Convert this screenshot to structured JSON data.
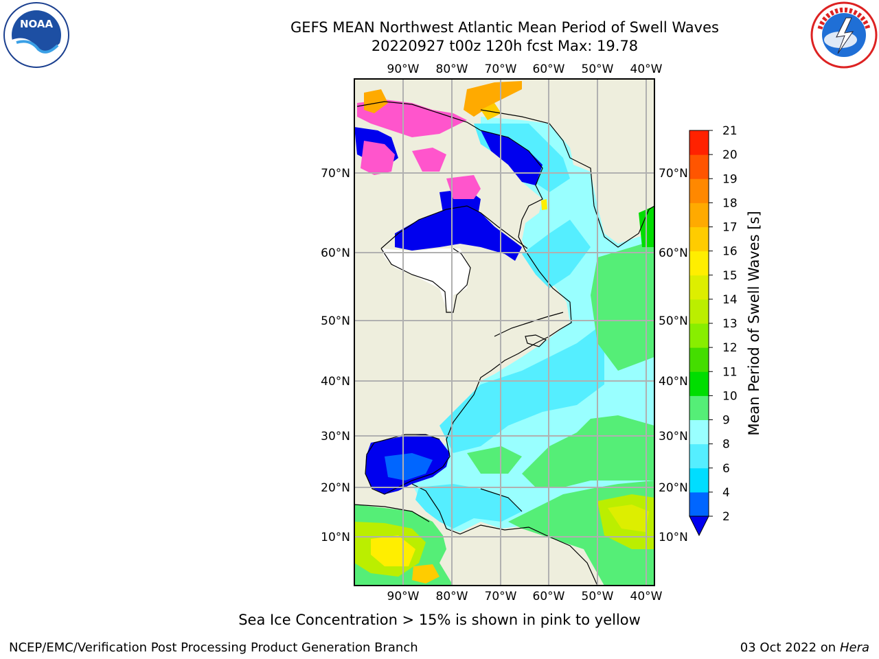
{
  "title": {
    "line1": "GEFS MEAN Northwest Atlantic Mean Period of Swell Waves",
    "line2": "20220927 t00z 120h fcst   Max: 19.78"
  },
  "map": {
    "lon_ticks": [
      "90°W",
      "80°W",
      "70°W",
      "60°W",
      "50°W",
      "40°W"
    ],
    "lat_ticks": [
      "70°N",
      "60°N",
      "50°N",
      "40°N",
      "30°N",
      "20°N",
      "10°N"
    ],
    "colors": {
      "land": "#eeeedd",
      "ice_free_dark": "#ffffff",
      "grid": "#b0b0b0"
    }
  },
  "colorbar": {
    "label": "Mean Period of Swell Waves [s]",
    "ticks": [
      "2",
      "4",
      "6",
      "8",
      "9",
      "10",
      "11",
      "12",
      "13",
      "14",
      "15",
      "16",
      "17",
      "18",
      "19",
      "20",
      "21"
    ],
    "colors": [
      "#0066ff",
      "#00ddff",
      "#55eeff",
      "#99ffff",
      "#55ee77",
      "#00dd00",
      "#44dd00",
      "#88ee00",
      "#bbee00",
      "#ddee00",
      "#ffee00",
      "#ffcc00",
      "#ffaa00",
      "#ff8800",
      "#ff5500",
      "#ff2200"
    ],
    "under_color": "#0000ee"
  },
  "note": "Sea Ice Concentration > 15% is shown in pink to yellow",
  "footer": {
    "left": "NCEP/EMC/Verification Post Processing Product Generation Branch",
    "right_date": "03 Oct 2022 on ",
    "right_machine": "Hera"
  },
  "logos": {
    "left": "noaa-logo",
    "right": "nws-logo"
  }
}
